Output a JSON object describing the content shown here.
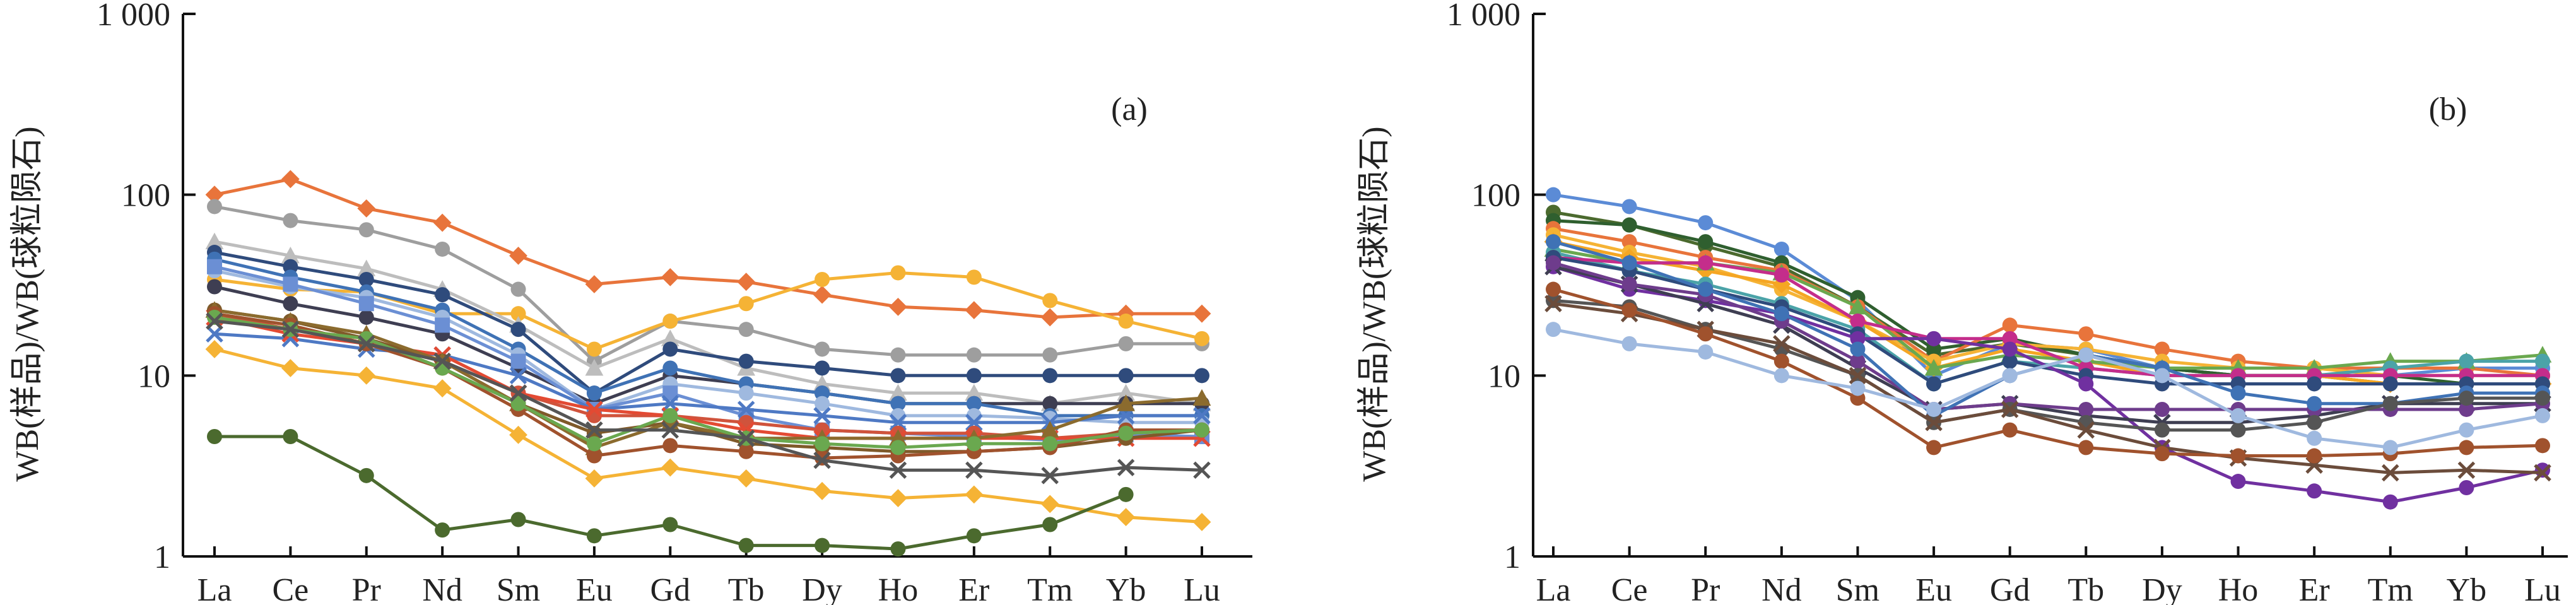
{
  "chart_data": [
    {
      "type": "line",
      "panel_label": "(a)",
      "ylabel": "WB(样品)/WB(球粒陨石)",
      "yscale": "log",
      "ylim": [
        1,
        1000
      ],
      "yticks": [
        "1",
        "10",
        "100",
        "1 000"
      ],
      "categories": [
        "La",
        "Ce",
        "Pr",
        "Nd",
        "Sm",
        "Eu",
        "Gd",
        "Tb",
        "Dy",
        "Ho",
        "Er",
        "Tm",
        "Yb",
        "Lu"
      ],
      "series": [
        {
          "color": "#e8743b",
          "marker": "diamond",
          "values": [
            100,
            122,
            84,
            70,
            46,
            32,
            35,
            33,
            28,
            24,
            23,
            21,
            22,
            22
          ]
        },
        {
          "color": "#9e9e9e",
          "marker": "circle",
          "values": [
            86,
            72,
            64,
            50,
            30,
            12,
            20,
            18,
            14,
            13,
            13,
            13,
            15,
            15
          ]
        },
        {
          "color": "#f5b335",
          "marker": "circle",
          "values": [
            34,
            30,
            29,
            22,
            22,
            14,
            20,
            25,
            34,
            37,
            35,
            26,
            20,
            16
          ]
        },
        {
          "color": "#bdbdbd",
          "marker": "triangle",
          "values": [
            55,
            46,
            39,
            30,
            19,
            11,
            16,
            11,
            9,
            8,
            8,
            7,
            8,
            7
          ]
        },
        {
          "color": "#2f4b7c",
          "marker": "circle",
          "values": [
            48,
            40,
            34,
            28,
            18,
            8,
            14,
            12,
            11,
            10,
            10,
            10,
            10,
            10
          ]
        },
        {
          "color": "#3e3e52",
          "marker": "circle",
          "values": [
            31,
            25,
            21,
            17,
            11,
            7,
            10,
            9,
            8,
            7,
            7,
            7,
            7,
            7
          ]
        },
        {
          "color": "#3f72b5",
          "marker": "circle",
          "values": [
            44,
            35,
            29,
            23,
            14,
            8,
            11,
            9,
            8,
            7,
            7,
            6,
            6,
            6
          ]
        },
        {
          "color": "#9fb9df",
          "marker": "circle",
          "values": [
            38,
            31,
            27,
            21,
            13,
            6.5,
            9,
            8,
            7,
            6,
            6,
            5.8,
            5.5,
            5.5
          ]
        },
        {
          "color": "#6b8fd4",
          "marker": "square",
          "values": [
            40,
            32,
            25,
            19,
            12,
            6.5,
            8,
            6,
            5,
            4.8,
            4.6,
            4.4,
            4.7,
            4.6
          ]
        },
        {
          "color": "#4e79c4",
          "marker": "cross",
          "values": [
            17,
            16,
            14,
            13,
            10,
            6.5,
            7,
            6.5,
            6,
            5.5,
            5.5,
            5.5,
            6,
            6
          ]
        },
        {
          "color": "#d0533c",
          "marker": "circle",
          "values": [
            22,
            18,
            16,
            12,
            8,
            6,
            6,
            5.5,
            5,
            4.8,
            4.8,
            4.5,
            4.8,
            5
          ]
        },
        {
          "color": "#e34a33",
          "marker": "cross",
          "values": [
            21,
            17,
            15,
            13,
            8,
            6.5,
            6,
            5,
            4.5,
            4.5,
            4.5,
            4.5,
            4.5,
            4.5
          ]
        },
        {
          "color": "#7f5a2a",
          "marker": "circle",
          "values": [
            23,
            20,
            16,
            12,
            7,
            4.8,
            5.5,
            4.2,
            4,
            3.8,
            3.8,
            4,
            4.5,
            5
          ]
        },
        {
          "color": "#8b6b2e",
          "marker": "triangle",
          "values": [
            23,
            20,
            17,
            12,
            7,
            4,
            5.5,
            4.5,
            4.5,
            4.5,
            4.5,
            5,
            7,
            7.5
          ]
        },
        {
          "color": "#a0522d",
          "marker": "circle",
          "values": [
            22,
            19,
            15,
            11,
            6.5,
            3.6,
            4.1,
            3.8,
            3.5,
            3.6,
            3.8,
            4,
            5,
            5
          ]
        },
        {
          "color": "#6aa84f",
          "marker": "circle",
          "values": [
            21,
            18,
            16,
            11,
            7,
            4.2,
            6,
            4.5,
            4.2,
            4,
            4.2,
            4.2,
            4.8,
            5
          ]
        },
        {
          "color": "#555555",
          "marker": "cross",
          "values": [
            20,
            18,
            15,
            12,
            8,
            5,
            5,
            4.5,
            3.4,
            3,
            3,
            2.8,
            3.1,
            3
          ]
        },
        {
          "color": "#f5b335",
          "marker": "diamond",
          "values": [
            14,
            11,
            10,
            8.5,
            4.7,
            2.7,
            3.1,
            2.7,
            2.3,
            2.1,
            2.2,
            1.95,
            1.65,
            1.55
          ]
        },
        {
          "color": "#4b6a2e",
          "marker": "circle",
          "values": [
            4.6,
            4.6,
            2.8,
            1.4,
            1.6,
            1.3,
            1.5,
            1.15,
            1.15,
            1.1,
            1.3,
            1.5,
            2.2,
            null
          ]
        }
      ]
    },
    {
      "type": "line",
      "panel_label": "(b)",
      "ylabel": "WB(样品)/WB(球粒陨石)",
      "yscale": "log",
      "ylim": [
        1,
        1000
      ],
      "yticks": [
        "1",
        "10",
        "100",
        "1 000"
      ],
      "categories": [
        "La",
        "Ce",
        "Pr",
        "Nd",
        "Sm",
        "Eu",
        "Gd",
        "Tb",
        "Dy",
        "Ho",
        "Er",
        "Tm",
        "Yb",
        "Lu"
      ],
      "series": [
        {
          "color": "#5b8bd6",
          "marker": "circle",
          "values": [
            100,
            86,
            70,
            50,
            26,
            10,
            15,
            14,
            11,
            10,
            10,
            10,
            11,
            11
          ]
        },
        {
          "color": "#4b6a2e",
          "marker": "circle",
          "values": [
            80,
            68,
            52,
            40,
            24,
            13,
            15,
            13,
            11,
            10,
            10,
            9,
            9,
            9
          ]
        },
        {
          "color": "#2f5f2f",
          "marker": "circle",
          "values": [
            72,
            68,
            55,
            42,
            27,
            14,
            16,
            13,
            11,
            10,
            10,
            10,
            9,
            9
          ]
        },
        {
          "color": "#e8743b",
          "marker": "circle",
          "values": [
            65,
            55,
            45,
            38,
            24,
            12,
            19,
            17,
            14,
            12,
            11,
            11,
            11,
            10
          ]
        },
        {
          "color": "#f5b335",
          "marker": "circle",
          "values": [
            60,
            48,
            40,
            30,
            20,
            12,
            15,
            14,
            12,
            11,
            11,
            10,
            10,
            10
          ]
        },
        {
          "color": "#f5a623",
          "marker": "diamond",
          "values": [
            55,
            45,
            38,
            32,
            20,
            11,
            14,
            12,
            10,
            10,
            10,
            9,
            9,
            9
          ]
        },
        {
          "color": "#6aa84f",
          "marker": "triangle",
          "values": [
            50,
            42,
            42,
            37,
            24,
            11,
            13,
            12,
            11,
            11,
            11,
            12,
            12,
            13
          ]
        },
        {
          "color": "#4ba3a8",
          "marker": "circle",
          "values": [
            48,
            38,
            32,
            25,
            18,
            9,
            12,
            11,
            10,
            10,
            10,
            11,
            12,
            12
          ]
        },
        {
          "color": "#c42d8b",
          "marker": "circle",
          "values": [
            45,
            42,
            42,
            36,
            20,
            16,
            16,
            11,
            10,
            10,
            10,
            10,
            10,
            10
          ]
        },
        {
          "color": "#2f4b7c",
          "marker": "circle",
          "values": [
            45,
            38,
            30,
            24,
            17,
            9,
            12,
            10,
            9,
            9,
            9,
            9,
            9,
            9
          ]
        },
        {
          "color": "#7030a0",
          "marker": "circle",
          "values": [
            40,
            30,
            26,
            22,
            16,
            16,
            14,
            9,
            4,
            2.6,
            2.3,
            2,
            2.4,
            3
          ]
        },
        {
          "color": "#3e3e52",
          "marker": "cross",
          "values": [
            40,
            32,
            25,
            19,
            11,
            6.5,
            7,
            6,
            5.5,
            5.5,
            6,
            7,
            7,
            7
          ]
        },
        {
          "color": "#6e3c8c",
          "marker": "circle",
          "values": [
            42,
            32,
            28,
            20,
            12,
            6.5,
            7,
            6.5,
            6.5,
            6.5,
            6.5,
            6.5,
            6.5,
            7
          ]
        },
        {
          "color": "#3f72b5",
          "marker": "circle",
          "values": [
            55,
            42,
            30,
            22,
            14,
            6,
            10,
            13,
            11,
            8,
            7,
            7,
            8,
            8
          ]
        },
        {
          "color": "#555555",
          "marker": "circle",
          "values": [
            26,
            24,
            18,
            14,
            10,
            5.5,
            6.5,
            5.5,
            5,
            5,
            5.5,
            7,
            7.5,
            7.5
          ]
        },
        {
          "color": "#6b4c3b",
          "marker": "cross",
          "values": [
            25,
            22,
            18,
            15,
            10,
            5.5,
            6.5,
            5,
            4,
            3.5,
            3.2,
            2.9,
            3,
            2.9
          ]
        },
        {
          "color": "#a0522d",
          "marker": "circle",
          "values": [
            30,
            23,
            17,
            12,
            7.5,
            4,
            5,
            4,
            3.7,
            3.6,
            3.6,
            3.7,
            4,
            4.1
          ]
        },
        {
          "color": "#9fb9df",
          "marker": "circle",
          "values": [
            18,
            15,
            13.5,
            10,
            8.5,
            6.5,
            10,
            13,
            10,
            6,
            4.5,
            4,
            5,
            6
          ]
        }
      ]
    }
  ]
}
